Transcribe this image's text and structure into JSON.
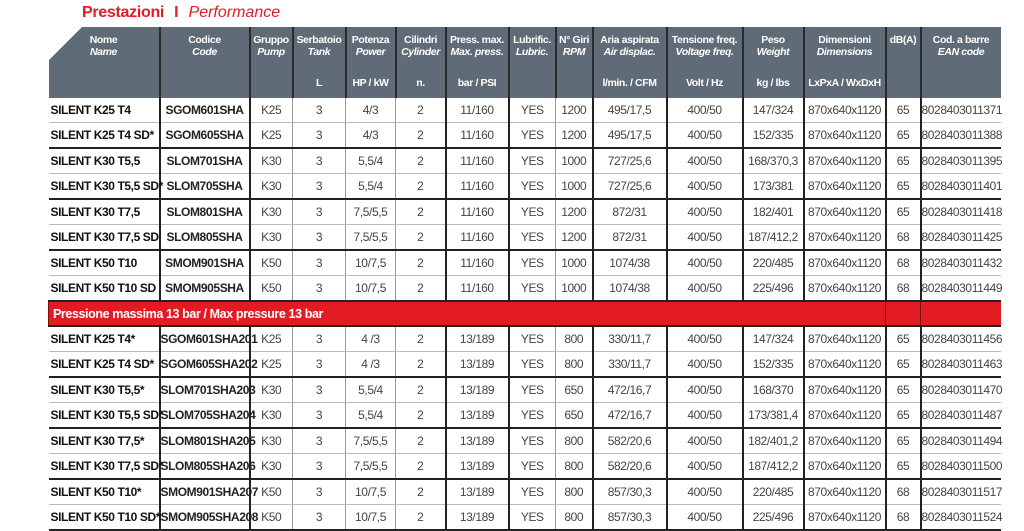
{
  "title": {
    "it": "Prestazioni",
    "sep": "I",
    "en": "Performance"
  },
  "colors": {
    "accent": "#e31b23",
    "header_bg": "#5f6b76"
  },
  "columns": [
    {
      "it": "Nome",
      "en": "Name",
      "unit": ""
    },
    {
      "it": "Codice",
      "en": "Code",
      "unit": ""
    },
    {
      "it": "Gruppo",
      "en": "Pump",
      "unit": ""
    },
    {
      "it": "Serbatoio",
      "en": "Tank",
      "unit": "L"
    },
    {
      "it": "Potenza",
      "en": "Power",
      "unit": "HP / kW"
    },
    {
      "it": "Cilindri",
      "en": "Cylinder",
      "unit": "n."
    },
    {
      "it": "Press. max.",
      "en": "Max. press.",
      "unit": "bar / PSI"
    },
    {
      "it": "Lubrific.",
      "en": "Lubric.",
      "unit": ""
    },
    {
      "it": "N° Giri",
      "en": "RPM",
      "unit": ""
    },
    {
      "it": "Aria aspirata",
      "en": "Air displac.",
      "unit": "l/min. / CFM"
    },
    {
      "it": "Tensione freq.",
      "en": "Voltage freq.",
      "unit": "Volt / Hz"
    },
    {
      "it": "Peso",
      "en": "Weight",
      "unit": "kg / lbs"
    },
    {
      "it": "Dimensioni",
      "en": "Dimensions",
      "unit": "LxPxA / WxDxH"
    },
    {
      "it": "dB(A)",
      "en": "",
      "unit": ""
    },
    {
      "it": "Cod. a barre",
      "en": "EAN code",
      "unit": ""
    }
  ],
  "section1_rows": [
    [
      "SILENT K25 T4",
      "SGOM601SHA",
      "K25",
      "3",
      "4/3",
      "2",
      "11/160",
      "YES",
      "1200",
      "495/17,5",
      "400/50",
      "147/324",
      "870x640x1120",
      "65",
      "8028403011371"
    ],
    [
      "SILENT K25 T4 SD*",
      "SGOM605SHA",
      "K25",
      "3",
      "4/3",
      "2",
      "11/160",
      "YES",
      "1200",
      "495/17,5",
      "400/50",
      "152/335",
      "870x640x1120",
      "65",
      "8028403011388"
    ],
    [
      "SILENT K30 T5,5",
      "SLOM701SHA",
      "K30",
      "3",
      "5,5/4",
      "2",
      "11/160",
      "YES",
      "1000",
      "727/25,6",
      "400/50",
      "168/370,3",
      "870x640x1120",
      "65",
      "8028403011395"
    ],
    [
      "SILENT K30 T5,5 SD*",
      "SLOM705SHA",
      "K30",
      "3",
      "5,5/4",
      "2",
      "11/160",
      "YES",
      "1000",
      "727/25,6",
      "400/50",
      "173/381",
      "870x640x1120",
      "65",
      "8028403011401"
    ],
    [
      "SILENT K30 T7,5",
      "SLOM801SHA",
      "K30",
      "3",
      "7,5/5,5",
      "2",
      "11/160",
      "YES",
      "1200",
      "872/31",
      "400/50",
      "182/401",
      "870x640x1120",
      "65",
      "8028403011418"
    ],
    [
      "SILENT K30 T7,5 SD",
      "SLOM805SHA",
      "K30",
      "3",
      "7,5/5,5",
      "2",
      "11/160",
      "YES",
      "1200",
      "872/31",
      "400/50",
      "187/412,2",
      "870x640x1120",
      "68",
      "8028403011425"
    ],
    [
      "SILENT K50 T10",
      "SMOM901SHA",
      "K50",
      "3",
      "10/7,5",
      "2",
      "11/160",
      "YES",
      "1000",
      "1074/38",
      "400/50",
      "220/485",
      "870x640x1120",
      "68",
      "8028403011432"
    ],
    [
      "SILENT K50 T10 SD",
      "SMOM905SHA",
      "K50",
      "3",
      "10/7,5",
      "2",
      "11/160",
      "YES",
      "1000",
      "1074/38",
      "400/50",
      "225/496",
      "870x640x1120",
      "68",
      "8028403011449"
    ]
  ],
  "section2_label": "Pressione massima 13 bar / Max pressure 13 bar",
  "section2_rows": [
    [
      "SILENT K25 T4*",
      "SGOM601SHA201",
      "K25",
      "3",
      "4 /3",
      "2",
      "13/189",
      "YES",
      "800",
      "330/11,7",
      "400/50",
      "147/324",
      "870x640x1120",
      "65",
      "8028403011456"
    ],
    [
      "SILENT K25 T4 SD*",
      "SGOM605SHA202",
      "K25",
      "3",
      "4 /3",
      "2",
      "13/189",
      "YES",
      "800",
      "330/11,7",
      "400/50",
      "152/335",
      "870x640x1120",
      "65",
      "8028403011463"
    ],
    [
      "SILENT K30 T5,5*",
      "SLOM701SHA203",
      "K30",
      "3",
      "5,5/4",
      "2",
      "13/189",
      "YES",
      "650",
      "472/16,7",
      "400/50",
      "168/370",
      "870x640x1120",
      "65",
      "8028403011470"
    ],
    [
      "SILENT K30 T5,5 SD*",
      "SLOM705SHA204",
      "K30",
      "3",
      "5,5/4",
      "2",
      "13/189",
      "YES",
      "650",
      "472/16,7",
      "400/50",
      "173/381,4",
      "870x640x1120",
      "65",
      "8028403011487"
    ],
    [
      "SILENT K30 T7,5*",
      "SLOM801SHA205",
      "K30",
      "3",
      "7,5/5,5",
      "2",
      "13/189",
      "YES",
      "800",
      "582/20,6",
      "400/50",
      "182/401,2",
      "870x640x1120",
      "65",
      "8028403011494"
    ],
    [
      "SILENT K30 T7,5 SD*",
      "SLOM805SHA206",
      "K30",
      "3",
      "7,5/5,5",
      "2",
      "13/189",
      "YES",
      "800",
      "582/20,6",
      "400/50",
      "187/412,2",
      "870x640x1120",
      "65",
      "8028403011500"
    ],
    [
      "SILENT K50 T10*",
      "SMOM901SHA207",
      "K50",
      "3",
      "10/7,5",
      "2",
      "13/189",
      "YES",
      "800",
      "857/30,3",
      "400/50",
      "220/485",
      "870x640x1120",
      "68",
      "8028403011517"
    ],
    [
      "SILENT K50 T10 SD*",
      "SMOM905SHA208",
      "K50",
      "3",
      "10/7,5",
      "2",
      "13/189",
      "YES",
      "800",
      "857/30,3",
      "400/50",
      "225/496",
      "870x640x1120",
      "68",
      "8028403011524"
    ]
  ]
}
